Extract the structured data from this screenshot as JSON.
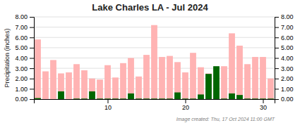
{
  "chart_data": {
    "type": "bar",
    "title": "Lake Charles LA - Jul 2024",
    "y_label": "Precipitation (inches)",
    "annotations": [
      "Image created: Thu, 17 Oct 2024 11:00 GMT"
    ],
    "x": [
      1,
      2,
      3,
      4,
      5,
      6,
      7,
      8,
      9,
      10,
      11,
      12,
      13,
      14,
      15,
      16,
      17,
      18,
      19,
      20,
      21,
      22,
      23,
      24,
      25,
      26,
      27,
      28,
      29,
      30,
      31
    ],
    "series": [
      {
        "color": "#ffb3b3",
        "values": [
          5.8,
          2.7,
          3.8,
          2.5,
          2.6,
          3.4,
          2.8,
          2.0,
          1.9,
          3.3,
          2.1,
          3.5,
          4.0,
          2.2,
          4.3,
          7.2,
          4.1,
          4.2,
          3.6,
          2.6,
          4.5,
          3.1,
          2.5,
          2.4,
          3.2,
          6.4,
          5.2,
          3.4,
          4.1,
          4.1,
          2.0
        ]
      },
      {
        "color": "#006600",
        "values": [
          0.1,
          0.0,
          0.0,
          0.75,
          0.0,
          0.05,
          0.05,
          0.75,
          0.05,
          0.05,
          0.05,
          0.05,
          0.55,
          0.05,
          0.05,
          0.05,
          0.05,
          0.05,
          0.65,
          0.05,
          0.05,
          0.45,
          2.45,
          3.2,
          0.05,
          0.55,
          0.4,
          0.05,
          0.05,
          0.05,
          0.05
        ]
      }
    ],
    "stacked": false,
    "xlim": [
      0.5,
      31.5
    ],
    "xticks": [
      10,
      20,
      30
    ],
    "ylim": [
      0.0,
      8.0
    ],
    "yticks": [
      {
        "value": 0.0,
        "label": "0.00"
      },
      {
        "value": 1.0,
        "label": "1.00"
      },
      {
        "value": 2.0,
        "label": "2.00"
      },
      {
        "value": 3.0,
        "label": "3.00"
      },
      {
        "value": 4.0,
        "label": "4.00"
      },
      {
        "value": 5.0,
        "label": "5.00"
      },
      {
        "value": 6.0,
        "label": "6.00"
      },
      {
        "value": 7.0,
        "label": "7.00"
      },
      {
        "value": 8.0,
        "label": "8.00"
      }
    ],
    "y2lim": [
      0.0,
      8.0
    ],
    "y2ticks": [
      {
        "value": 0.0,
        "label": "0.00"
      },
      {
        "value": 1.0,
        "label": "1.00"
      },
      {
        "value": 2.0,
        "label": "2.00"
      },
      {
        "value": 3.0,
        "label": "3.00"
      },
      {
        "value": 4.0,
        "label": "4.00"
      },
      {
        "value": 5.0,
        "label": "5.00"
      },
      {
        "value": 6.0,
        "label": "6.00"
      },
      {
        "value": 7.0,
        "label": "7.00"
      },
      {
        "value": 8.0,
        "label": "8.00"
      }
    ],
    "grid": true
  }
}
